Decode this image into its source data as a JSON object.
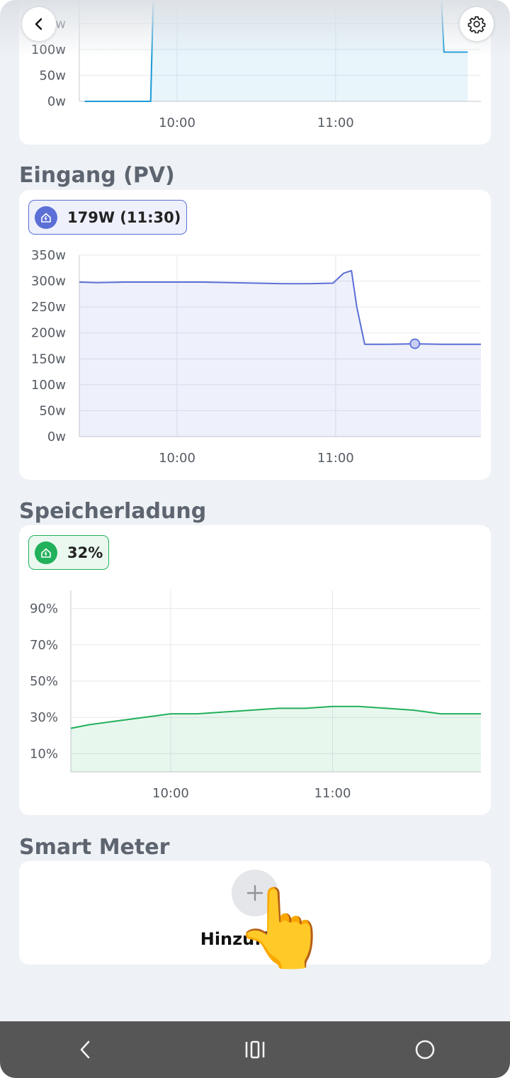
{
  "header": {
    "back_icon": "chevron-left-icon",
    "settings_icon": "gear-icon"
  },
  "top_chart": {
    "y_tick_labels": [
      "150w",
      "100w",
      "50w",
      "0w"
    ],
    "x_tick_labels": [
      "10:00",
      "11:00"
    ],
    "chart_data": {
      "type": "line",
      "x": [
        "09:25",
        "09:50",
        "09:51",
        "11:40",
        "11:41",
        "11:50"
      ],
      "values": [
        0,
        0,
        200,
        200,
        95,
        95
      ],
      "ylim": [
        0,
        200
      ],
      "color": "#1a9ad6"
    }
  },
  "pv_section": {
    "title": "Eingang (PV)",
    "badge_value": "179W (11:30)",
    "badge_color": "#5b6fd6",
    "y_tick_labels": [
      "350w",
      "300w",
      "250w",
      "200w",
      "150w",
      "100w",
      "50w",
      "0w"
    ],
    "x_tick_labels": [
      "10:00",
      "11:00"
    ],
    "chart_data": {
      "type": "area",
      "x": [
        "09:23",
        "09:30",
        "09:40",
        "09:50",
        "10:00",
        "10:10",
        "10:20",
        "10:30",
        "10:40",
        "10:50",
        "10:59",
        "11:03",
        "11:06",
        "11:08",
        "11:11",
        "11:20",
        "11:30",
        "11:40",
        "11:50",
        "11:55"
      ],
      "values": [
        298,
        297,
        298,
        298,
        298,
        298,
        297,
        296,
        295,
        295,
        296,
        315,
        320,
        250,
        178,
        178,
        179,
        178,
        178,
        178
      ],
      "ylim": [
        0,
        350
      ],
      "highlight": {
        "x": "11:30",
        "value": 179
      },
      "color": "#5b6fd6"
    }
  },
  "battery_section": {
    "title": "Speicherladung",
    "badge_value": "32%",
    "badge_color": "#22b05a",
    "y_tick_labels": [
      "90%",
      "70%",
      "50%",
      "30%",
      "10%"
    ],
    "x_tick_labels": [
      "10:00",
      "11:00"
    ],
    "chart_data": {
      "type": "area",
      "x": [
        "09:23",
        "09:30",
        "09:40",
        "09:50",
        "10:00",
        "10:10",
        "10:20",
        "10:30",
        "10:40",
        "10:50",
        "11:00",
        "11:10",
        "11:20",
        "11:30",
        "11:40",
        "11:55"
      ],
      "values": [
        24,
        26,
        28,
        30,
        32,
        32,
        33,
        34,
        35,
        35,
        36,
        36,
        35,
        34,
        32,
        32
      ],
      "ylim": [
        0,
        100
      ],
      "color": "#22b05a"
    }
  },
  "smart_meter_section": {
    "title": "Smart Meter",
    "add_label": "Hinzufügen",
    "add_icon": "plus-icon"
  },
  "navbar": {
    "back_icon": "nav-back-icon",
    "home_icon": "nav-home-icon",
    "recents_icon": "nav-recents-icon"
  }
}
